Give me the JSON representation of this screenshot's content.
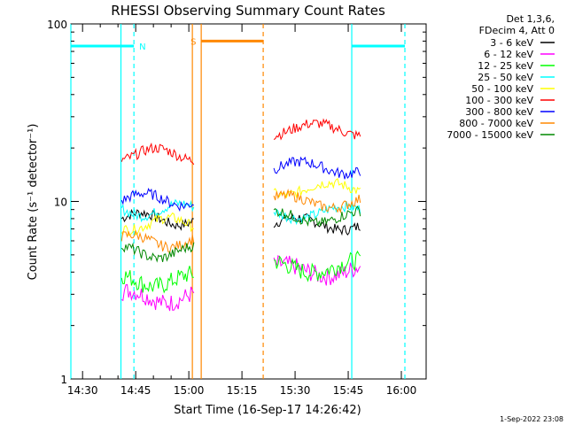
{
  "chart_data": {
    "type": "line",
    "title": "RHESSI Observing Summary Count Rates",
    "xlabel": "Start Time (16-Sep-17 14:26:42)",
    "ylabel": "Count Rate (s⁻¹ detector⁻¹)",
    "y_scale": "log",
    "ylim": [
      1,
      100
    ],
    "xlim": [
      "14:26:42",
      "16:07:00"
    ],
    "x_ticks": [
      "14:30",
      "14:45",
      "15:00",
      "15:15",
      "15:30",
      "15:45",
      "16:00"
    ],
    "y_ticks": [
      "1",
      "10",
      "100"
    ],
    "grid": false,
    "legend_header": [
      "Det 1,3,6,",
      "FDecim 4, Att 0"
    ],
    "legend_placement": "right",
    "timestamp": "1-Sep-2022 23:08",
    "series": [
      {
        "name": "3 - 6 keV",
        "color": "#000000",
        "seg1": 8.0,
        "seg2": 7.5
      },
      {
        "name": "6 - 12 keV",
        "color": "#ff00ff",
        "seg1": 2.9,
        "seg2": 4.1
      },
      {
        "name": "12 - 25 keV",
        "color": "#00ff00",
        "seg1": 3.6,
        "seg2": 4.3
      },
      {
        "name": "25 - 50 keV",
        "color": "#00ffff",
        "seg1": 9.0,
        "seg2": 8.7
      },
      {
        "name": "50 - 100 keV",
        "color": "#ffff00",
        "seg1": 7.5,
        "seg2": 11.8
      },
      {
        "name": "100 - 300 keV",
        "color": "#ff0000",
        "seg1": 18.5,
        "seg2": 25.5
      },
      {
        "name": "300 - 800 keV",
        "color": "#0000ff",
        "seg1": 10.3,
        "seg2": 15.5
      },
      {
        "name": "800 - 7000 keV",
        "color": "#ff8800",
        "seg1": 6.0,
        "seg2": 10.0
      },
      {
        "name": "7000 - 15000 keV",
        "color": "#008800",
        "seg1": 5.2,
        "seg2": 8.2
      }
    ],
    "data_segments": [
      {
        "start": "14:41:00",
        "end": "15:01:30"
      },
      {
        "start": "15:24:00",
        "end": "15:48:30"
      }
    ],
    "flags": [
      {
        "label": "N",
        "color": "#00ffff",
        "y": 75,
        "start": "14:26:42",
        "end": "14:44:30"
      },
      {
        "label": "S",
        "color": "#ff8800",
        "y": 80,
        "start": "15:03:30",
        "end": "15:21:00"
      },
      {
        "label": "",
        "color": "#00ffff",
        "y": 75,
        "start": "15:46:00",
        "end": "16:01:00"
      }
    ],
    "vlines": [
      {
        "t": "14:26:42",
        "color": "#00ffff",
        "dash": false
      },
      {
        "t": "14:40:50",
        "color": "#00ffff",
        "dash": false
      },
      {
        "t": "14:44:30",
        "color": "#00ffff",
        "dash": true
      },
      {
        "t": "15:01:00",
        "color": "#ff8800",
        "dash": false
      },
      {
        "t": "15:03:30",
        "color": "#ff8800",
        "dash": false
      },
      {
        "t": "15:21:00",
        "color": "#ff8800",
        "dash": true
      },
      {
        "t": "15:46:00",
        "color": "#00ffff",
        "dash": false
      },
      {
        "t": "16:01:00",
        "color": "#00ffff",
        "dash": true
      }
    ]
  }
}
